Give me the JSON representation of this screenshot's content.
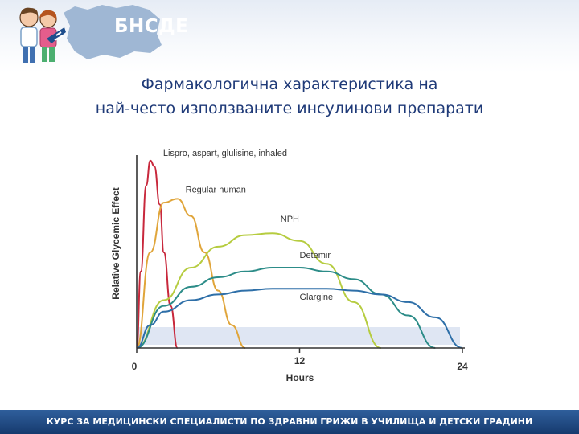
{
  "header": {
    "logo_text": "БНСДЕ",
    "colors": {
      "header_bg": "#e6ecf5",
      "map": "#9fb7d4",
      "logo_accent": "#1f4e8c"
    }
  },
  "title": {
    "line1": "Фармакологична характеристика на",
    "line2": "най-често използваните инсулинови препарати",
    "color": "#1f3a78"
  },
  "chart_data": {
    "type": "line",
    "xlabel": "Hours",
    "ylabel": "Relative Glycemic Effect",
    "xlim": [
      0,
      24
    ],
    "ylim": [
      0,
      10
    ],
    "x_tick_labels": [
      {
        "x": 0,
        "label": "0"
      },
      {
        "x": 12,
        "label": "12"
      },
      {
        "x": 24,
        "label": "24"
      }
    ],
    "grid": false,
    "series": [
      {
        "name": "Lispro, aspart, glulisine, inhaled",
        "color": "#c8283c",
        "x": [
          0,
          0.3,
          0.7,
          1.0,
          1.3,
          1.7,
          2.0,
          2.5,
          3.0
        ],
        "y": [
          0,
          4.0,
          8.5,
          9.8,
          9.5,
          7.5,
          5.0,
          2.2,
          0
        ]
      },
      {
        "name": "Regular human",
        "color": "#e0a53a",
        "x": [
          0,
          1.0,
          2.0,
          3.0,
          4.0,
          5.0,
          6.0,
          7.0,
          8.0
        ],
        "y": [
          0,
          5.0,
          7.6,
          7.8,
          6.9,
          5.0,
          3.0,
          1.2,
          0
        ]
      },
      {
        "name": "NPH",
        "color": "#b6cc40",
        "x": [
          0,
          2.0,
          4.0,
          6.0,
          8.0,
          10.0,
          12.0,
          14.0,
          16.0,
          18.0
        ],
        "y": [
          0,
          2.5,
          4.2,
          5.3,
          5.9,
          6.0,
          5.6,
          4.4,
          2.4,
          0
        ]
      },
      {
        "name": "Detemir",
        "color": "#2c8c88",
        "x": [
          0,
          2.0,
          4.0,
          6.0,
          8.0,
          10.0,
          12.0,
          14.0,
          16.0,
          18.0,
          20.0,
          22.0
        ],
        "y": [
          0,
          2.2,
          3.2,
          3.7,
          4.0,
          4.2,
          4.2,
          4.0,
          3.6,
          2.8,
          1.7,
          0
        ]
      },
      {
        "name": "Glargine",
        "color": "#2e6fa8",
        "x": [
          0,
          1.0,
          2.0,
          4.0,
          6.0,
          8.0,
          10.0,
          12.0,
          14.0,
          16.0,
          18.0,
          20.0,
          22.0,
          24.0
        ],
        "y": [
          0,
          1.2,
          1.9,
          2.5,
          2.8,
          3.0,
          3.1,
          3.1,
          3.1,
          3.0,
          2.8,
          2.4,
          1.6,
          0
        ]
      }
    ]
  },
  "footer": {
    "text": "КУРС ЗА МЕДИЦИНСКИ СПЕЦИАЛИСТИ ПО ЗДРАВНИ ГРИЖИ В УЧИЛИЩА И ДЕТСКИ ГРАДИНИ"
  }
}
